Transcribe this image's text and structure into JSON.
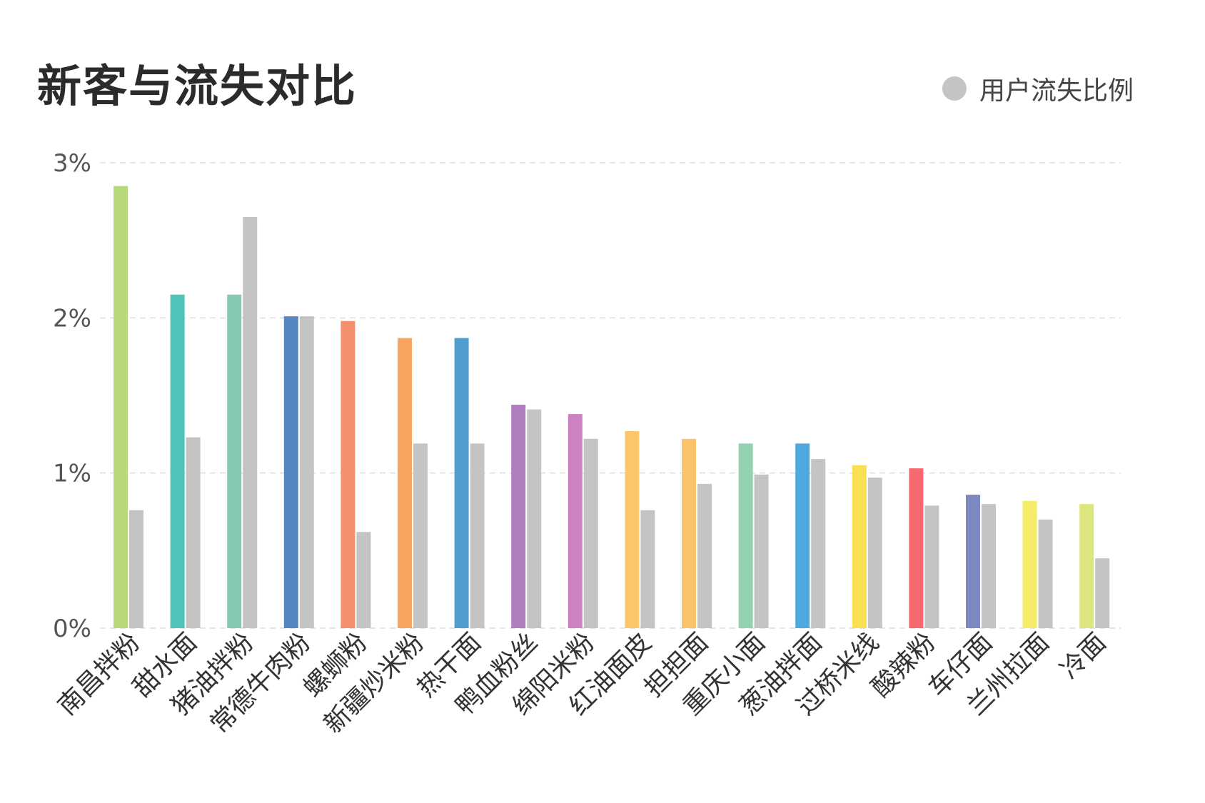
{
  "chart_data": {
    "type": "bar",
    "title": "新客与流失对比",
    "legend": {
      "position": "top-right",
      "entries": [
        {
          "label": "用户流失比例",
          "color": "#c4c4c4"
        }
      ]
    },
    "ylim": [
      0,
      3
    ],
    "yticks": [
      "0%",
      "1%",
      "2%",
      "3%"
    ],
    "grid": true,
    "categories": [
      "南昌拌粉",
      "甜水面",
      "猪油拌粉",
      "常德牛肉粉",
      "螺蛳粉",
      "新疆炒米粉",
      "热干面",
      "鸭血粉丝",
      "绵阳米粉",
      "红油面皮",
      "担担面",
      "重庆小面",
      "葱油拌面",
      "过桥米线",
      "酸辣粉",
      "车仔面",
      "兰州拉面",
      "冷面"
    ],
    "series": [
      {
        "values": [
          2.85,
          2.15,
          2.15,
          2.01,
          1.98,
          1.87,
          1.87,
          1.44,
          1.38,
          1.27,
          1.22,
          1.19,
          1.19,
          1.05,
          1.03,
          0.86,
          0.82,
          0.8
        ],
        "colors": [
          "#b8d97a",
          "#4ec4b8",
          "#86c8b0",
          "#5586c2",
          "#f49070",
          "#f7a560",
          "#4f9dce",
          "#b07dbf",
          "#cc82c0",
          "#fac86a",
          "#fcc46a",
          "#93d1b0",
          "#4eaade",
          "#fadf50",
          "#f86870",
          "#7e88c0",
          "#f5ec68",
          "#dde67e"
        ]
      },
      {
        "name": "用户流失比例",
        "color": "#c4c4c4",
        "values": [
          0.76,
          1.23,
          2.65,
          2.01,
          0.62,
          1.19,
          1.19,
          1.41,
          1.22,
          0.76,
          0.93,
          0.99,
          1.09,
          0.97,
          0.79,
          0.8,
          0.7,
          0.45
        ]
      }
    ]
  }
}
